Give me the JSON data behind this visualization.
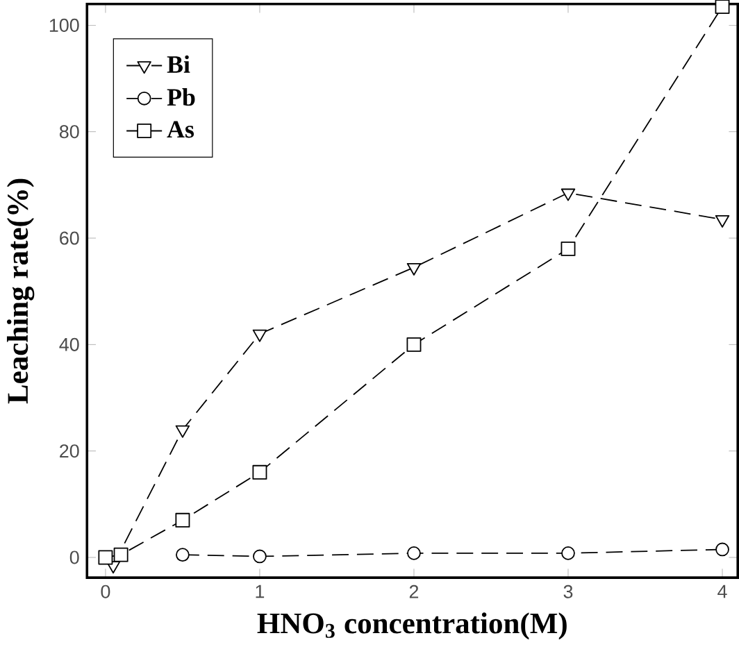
{
  "chart_data": {
    "type": "line",
    "xlabel": "HNO$_{3}$ concentration(M)",
    "ylabel": "Leaching rate(%)",
    "xlim": [
      -0.12,
      4.1
    ],
    "ylim": [
      -3.8,
      104
    ],
    "xticks": [
      0,
      1,
      2,
      3,
      4
    ],
    "yticks": [
      0,
      20,
      40,
      60,
      80,
      100
    ],
    "grid": false,
    "legend": "top left",
    "line_style": "dashed",
    "series": [
      {
        "name": "Bi",
        "color": "#000000",
        "marker": "triangle",
        "x": [
          0.05,
          0.5,
          1,
          2,
          3,
          4
        ],
        "values": [
          -1.5,
          24,
          42,
          54.5,
          68.5,
          63.5
        ]
      },
      {
        "name": "Pb",
        "color": "#000000",
        "marker": "circle",
        "x": [
          0.5,
          1,
          2,
          3,
          4
        ],
        "values": [
          0.5,
          0.2,
          0.8,
          0.8,
          1.5
        ]
      },
      {
        "name": "As",
        "color": "#000000",
        "marker": "square",
        "x": [
          0,
          0.1,
          0.5,
          1,
          2,
          3,
          4
        ],
        "values": [
          0,
          0.5,
          7,
          16,
          40,
          58,
          103.5
        ]
      }
    ]
  }
}
